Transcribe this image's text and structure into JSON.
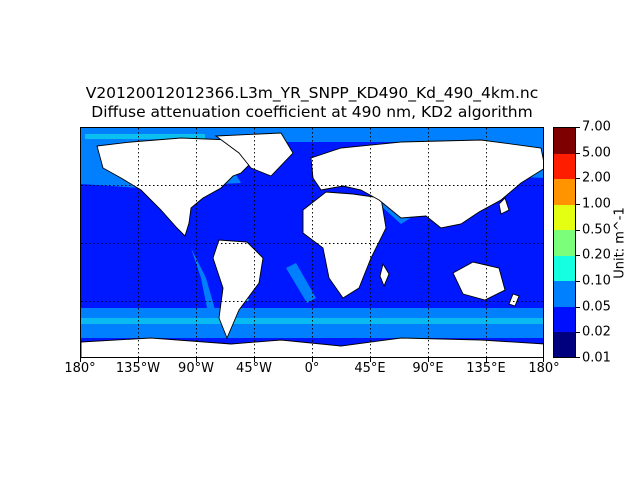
{
  "title_line1": "V20120012012366.L3m_YR_SNPP_KD490_Kd_490_4km.nc",
  "title_line2": "Diffuse attenuation coefficient at 490 nm, KD2 algorithm",
  "longitude_ticks": [
    "180°",
    "135°W",
    "90°W",
    "45°W",
    "0°",
    "45°E",
    "90°E",
    "135°E",
    "180°"
  ],
  "colorbar": {
    "label": "Unit: m^-1",
    "ticks": [
      "0.01",
      "0.02",
      "0.05",
      "0.10",
      "0.20",
      "0.50",
      "1.00",
      "2.00",
      "5.00",
      "7.00"
    ],
    "colors": [
      "#00007f",
      "#0010ff",
      "#0080ff",
      "#15ffe1",
      "#7bff7b",
      "#e4ff12",
      "#ff9400",
      "#ff1d00",
      "#7f0000"
    ]
  },
  "map": {
    "projection": "equirectangular",
    "ocean_color": "#0018ff",
    "land_color": "#ffffff",
    "coastal_color": "#0080ff",
    "gridlines": "dotted"
  }
}
